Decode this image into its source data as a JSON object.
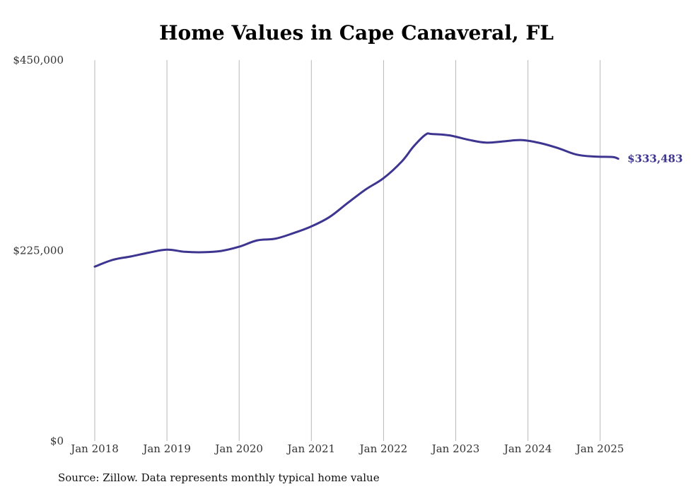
{
  "chart_data": {
    "type": "line",
    "title": "Home Values in Cape Canaveral, FL",
    "xlabel": "",
    "ylabel": "",
    "ylim": [
      0,
      450000
    ],
    "y_ticks": [
      {
        "value": 0,
        "label": "$0"
      },
      {
        "value": 225000,
        "label": "$225,000"
      },
      {
        "value": 450000,
        "label": "$450,000"
      }
    ],
    "x_ticks": [
      {
        "value": "2018-01",
        "label": "Jan 2018"
      },
      {
        "value": "2019-01",
        "label": "Jan 2019"
      },
      {
        "value": "2020-01",
        "label": "Jan 2020"
      },
      {
        "value": "2021-01",
        "label": "Jan 2021"
      },
      {
        "value": "2022-01",
        "label": "Jan 2022"
      },
      {
        "value": "2023-01",
        "label": "Jan 2023"
      },
      {
        "value": "2024-01",
        "label": "Jan 2024"
      },
      {
        "value": "2025-01",
        "label": "Jan 2025"
      }
    ],
    "grid": {
      "vertical": true,
      "horizontal": false
    },
    "line_color": "#3d3590",
    "series": [
      {
        "points": [
          {
            "x": "2018-01",
            "y": 206000
          },
          {
            "x": "2018-04",
            "y": 214000
          },
          {
            "x": "2018-07",
            "y": 218000
          },
          {
            "x": "2018-10",
            "y": 222500
          },
          {
            "x": "2019-01",
            "y": 226000
          },
          {
            "x": "2019-04",
            "y": 223500
          },
          {
            "x": "2019-07",
            "y": 223000
          },
          {
            "x": "2019-10",
            "y": 224500
          },
          {
            "x": "2020-01",
            "y": 229500
          },
          {
            "x": "2020-04",
            "y": 237000
          },
          {
            "x": "2020-07",
            "y": 239000
          },
          {
            "x": "2020-10",
            "y": 245500
          },
          {
            "x": "2021-01",
            "y": 253500
          },
          {
            "x": "2021-04",
            "y": 264500
          },
          {
            "x": "2021-07",
            "y": 281000
          },
          {
            "x": "2021-10",
            "y": 297000
          },
          {
            "x": "2022-01",
            "y": 310500
          },
          {
            "x": "2022-04",
            "y": 330000
          },
          {
            "x": "2022-06",
            "y": 348000
          },
          {
            "x": "2022-08",
            "y": 362000
          },
          {
            "x": "2022-09",
            "y": 362700
          },
          {
            "x": "2022-12",
            "y": 361000
          },
          {
            "x": "2023-03",
            "y": 356000
          },
          {
            "x": "2023-06",
            "y": 352500
          },
          {
            "x": "2023-09",
            "y": 354000
          },
          {
            "x": "2023-12",
            "y": 355500
          },
          {
            "x": "2024-03",
            "y": 352000
          },
          {
            "x": "2024-06",
            "y": 346000
          },
          {
            "x": "2024-09",
            "y": 338500
          },
          {
            "x": "2024-12",
            "y": 336000
          },
          {
            "x": "2025-03",
            "y": 335500
          },
          {
            "x": "2025-04",
            "y": 333483
          }
        ]
      }
    ],
    "end_label": "$333,483"
  },
  "source": "Source: Zillow. Data represents monthly typical home value"
}
